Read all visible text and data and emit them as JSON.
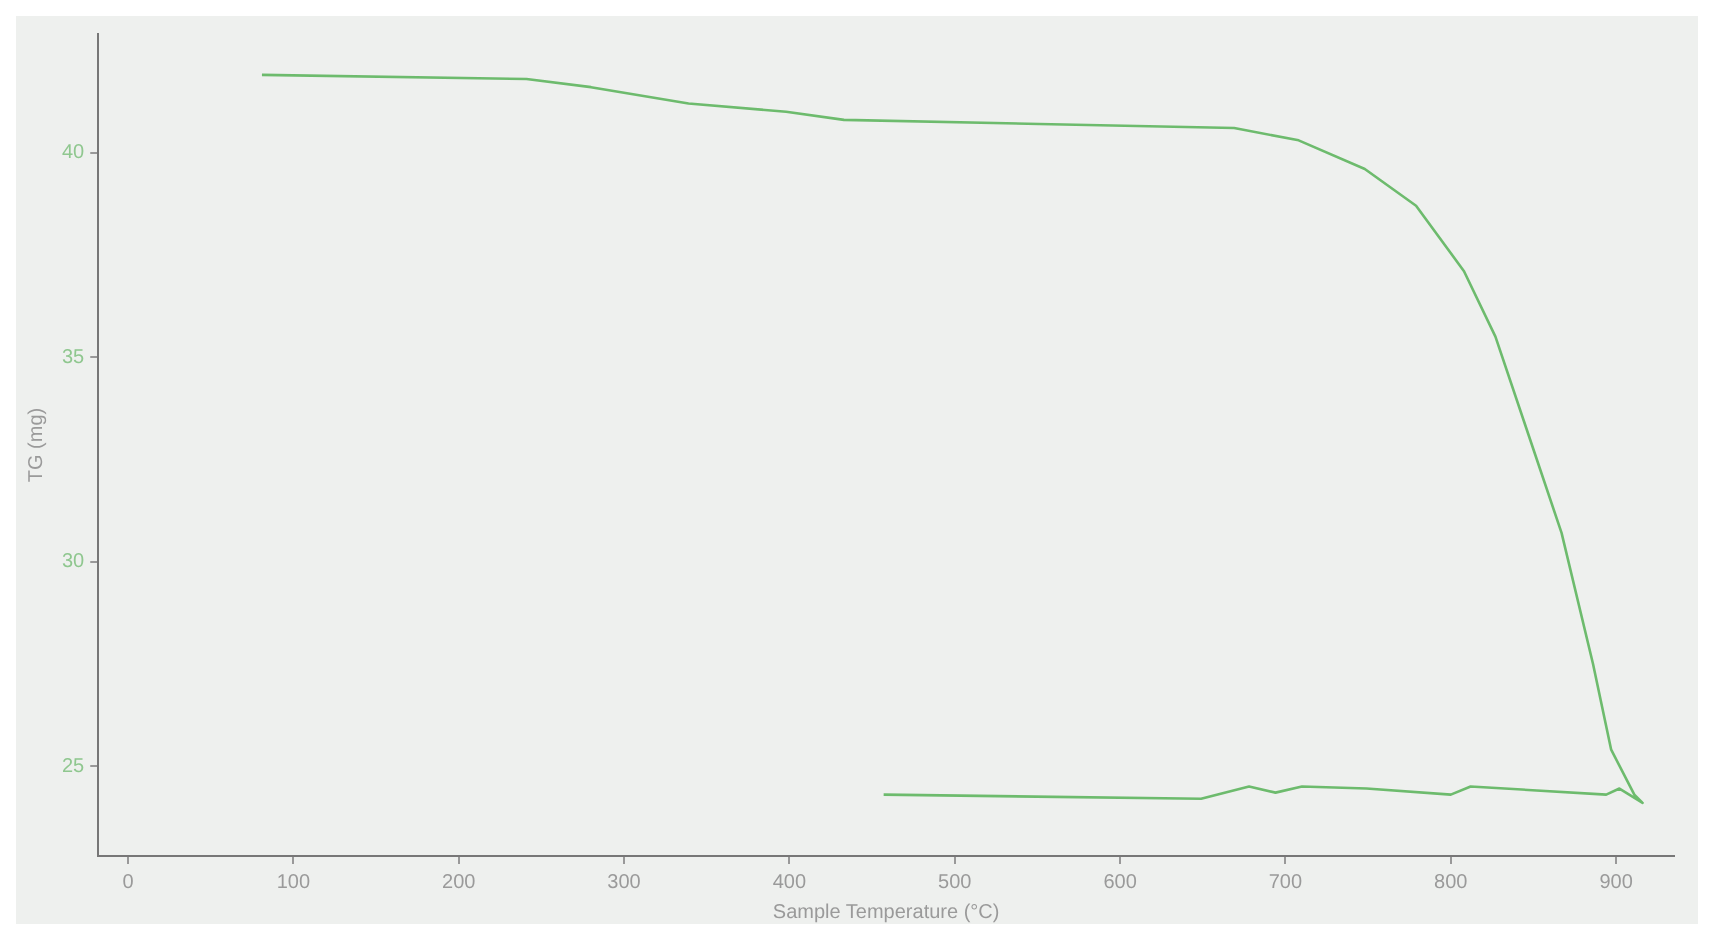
{
  "chart_data": {
    "type": "line",
    "xlabel": "Sample Temperature (°C)",
    "ylabel": "TG (mg)",
    "xlim": [
      -18,
      935
    ],
    "ylim": [
      22.8,
      42.9
    ],
    "xticks": [
      0,
      100,
      200,
      300,
      400,
      500,
      600,
      700,
      800,
      900
    ],
    "yticks": [
      25,
      30,
      35,
      40
    ],
    "grid": false,
    "legend": false,
    "marker": "none",
    "line_style": "solid",
    "series": [
      {
        "color": "#6dbb6d",
        "x": [
          81,
          241,
          280,
          339,
          398,
          433,
          551,
          669,
          708,
          748,
          779,
          808,
          827,
          847,
          867,
          886,
          897,
          911,
          916,
          902,
          894,
          812,
          800,
          749,
          710,
          694,
          678,
          649,
          457
        ],
        "values": [
          41.9,
          41.8,
          41.6,
          41.2,
          41.0,
          40.8,
          40.7,
          40.6,
          40.3,
          39.6,
          38.7,
          37.1,
          35.5,
          33.1,
          30.7,
          27.5,
          25.4,
          24.3,
          24.1,
          24.45,
          24.3,
          24.5,
          24.3,
          24.45,
          24.5,
          24.35,
          24.5,
          24.2,
          24.3
        ]
      }
    ]
  }
}
